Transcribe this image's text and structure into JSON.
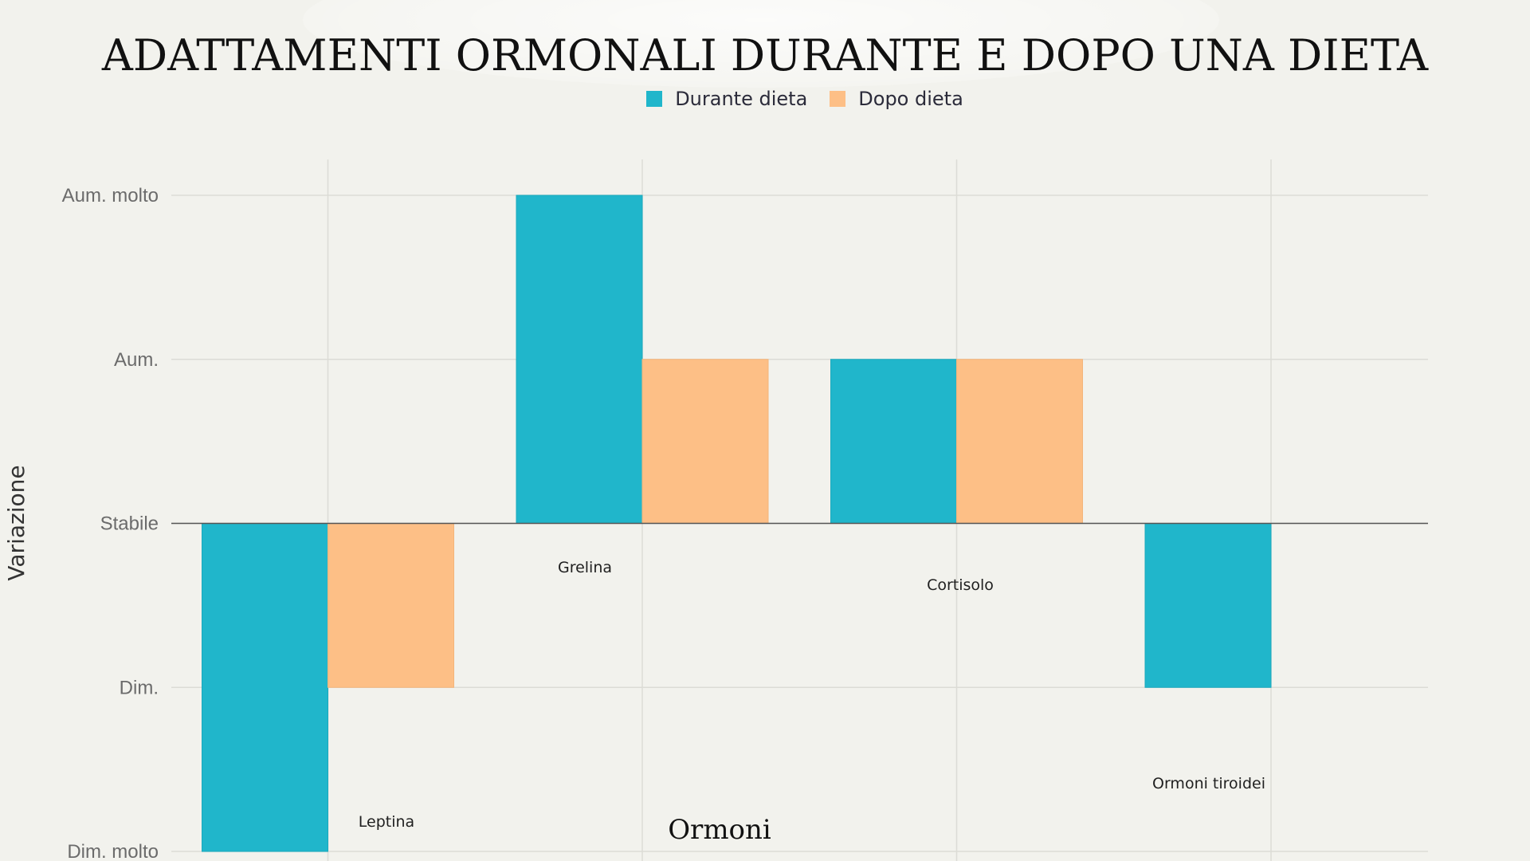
{
  "chart_data": {
    "type": "bar",
    "title": "ADATTAMENTI ORMONALI DURANTE E DOPO UNA DIETA",
    "xlabel": "Ormoni",
    "ylabel": "Variazione",
    "y_tick_labels": [
      "Dim. molto",
      "Dim.",
      "Stabile",
      "Aum.",
      "Aum. molto"
    ],
    "y_tick_values": [
      -2,
      -1,
      0,
      1,
      2
    ],
    "ylim": [
      -2,
      2
    ],
    "categories": [
      "Leptina",
      "Grelina",
      "Cortisolo",
      "Ormoni tiroidei"
    ],
    "series": [
      {
        "name": "Durante dieta",
        "color": "#20b6cb",
        "values": [
          -2,
          2,
          1,
          -1
        ]
      },
      {
        "name": "Dopo dieta",
        "color": "#fdbf86",
        "values": [
          -1,
          1,
          1,
          0
        ]
      }
    ],
    "grid": true,
    "legend_position": "top-center"
  }
}
